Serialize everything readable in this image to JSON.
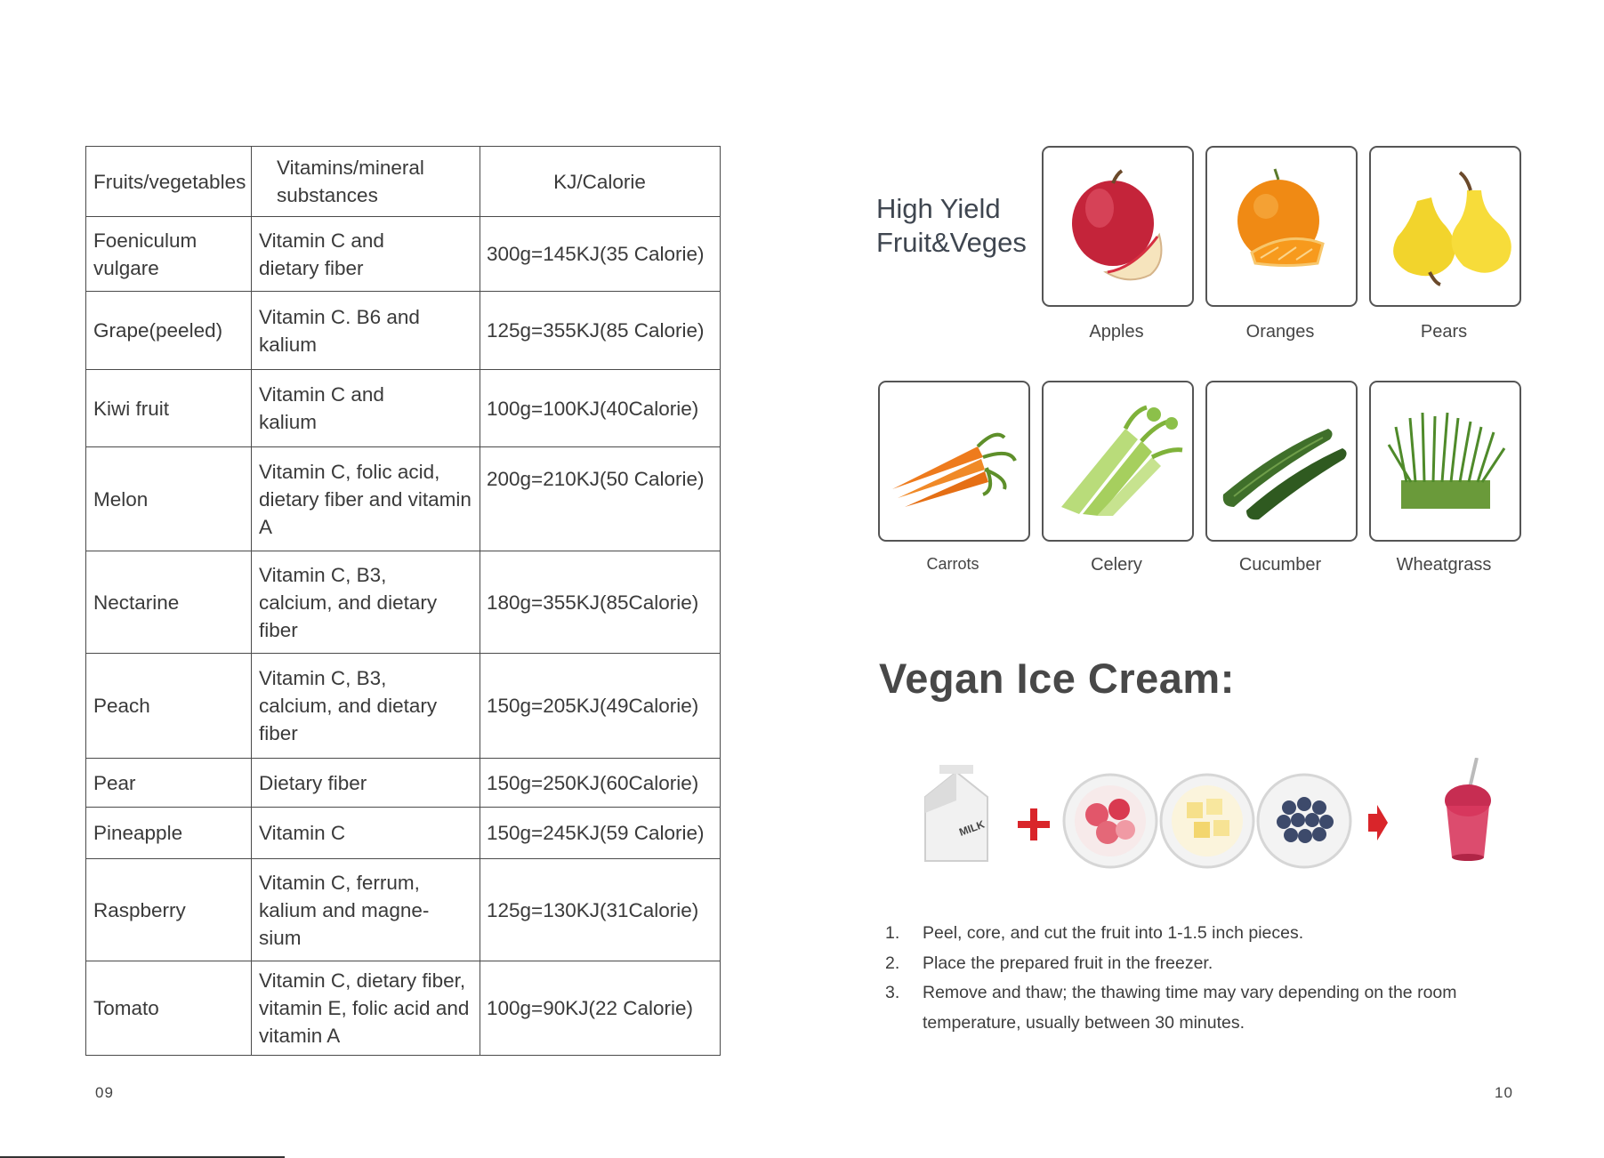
{
  "left_page": {
    "table": {
      "headers": [
        "Fruits/vegetables",
        "Vitamins/mineral substances",
        "KJ/Calorie"
      ],
      "rows": [
        {
          "item": "Foeniculum vulgare",
          "vitamins": "Vitamin C and dietary fiber",
          "kj": "300g=145KJ(35 Calorie)"
        },
        {
          "item": "Grape(peeled)",
          "vitamins": "Vitamin C. B6 and kalium",
          "kj": "125g=355KJ(85 Calorie)"
        },
        {
          "item": "Kiwi fruit",
          "vitamins": "Vitamin C and kalium",
          "kj": "100g=100KJ(40Calorie)"
        },
        {
          "item": "Melon",
          "vitamins": "Vitamin C, folic acid, dietary fiber and vitamin A",
          "kj": "200g=210KJ(50 Calorie)"
        },
        {
          "item": "Nectarine",
          "vitamins": "Vitamin C, B3, calcium, and dietary fiber",
          "kj": "180g=355KJ(85Calorie)"
        },
        {
          "item": "Peach",
          "vitamins": "Vitamin C, B3, calcium, and dietary fiber",
          "kj": "150g=205KJ(49Calorie)"
        },
        {
          "item": "Pear",
          "vitamins": "Dietary fiber",
          "kj": "150g=250KJ(60Calorie)"
        },
        {
          "item": "Pineapple",
          "vitamins": "Vitamin C",
          "kj": "150g=245KJ(59 Calorie)"
        },
        {
          "item": "Raspberry",
          "vitamins": "Vitamin C, ferrum, kalium and magne-sium",
          "kj": "125g=130KJ(31Calorie)"
        },
        {
          "item": "Tomato",
          "vitamins": "Vitamin C, dietary fiber, vitamin E, folic acid and vitamin A",
          "kj": "100g=90KJ(22 Calorie)"
        }
      ]
    },
    "page_number": "09"
  },
  "right_page": {
    "section_title_line1": "High Yield",
    "section_title_line2": "Fruit&Veges",
    "produce": [
      {
        "label": "Apples",
        "icon": "apple-icon"
      },
      {
        "label": "Oranges",
        "icon": "orange-icon"
      },
      {
        "label": "Pears",
        "icon": "pear-icon"
      },
      {
        "label": "Carrots",
        "icon": "carrot-icon"
      },
      {
        "label": "Celery",
        "icon": "celery-icon"
      },
      {
        "label": "Cucumber",
        "icon": "cucumber-icon"
      },
      {
        "label": "Wheatgrass",
        "icon": "wheatgrass-icon"
      }
    ],
    "recipe_title": "Vegan Ice Cream:",
    "carton_text": "MILK",
    "accent_color": "#d9252a",
    "steps": [
      {
        "num": "1.",
        "text": "Peel, core, and cut the fruit into 1-1.5 inch pieces."
      },
      {
        "num": "2.",
        "text": "Place the prepared fruit in the freezer."
      },
      {
        "num": "3.",
        "text": "Remove and thaw; the thawing time may vary depending on the room temperature, usually between 30 minutes."
      }
    ],
    "page_number": "10"
  }
}
